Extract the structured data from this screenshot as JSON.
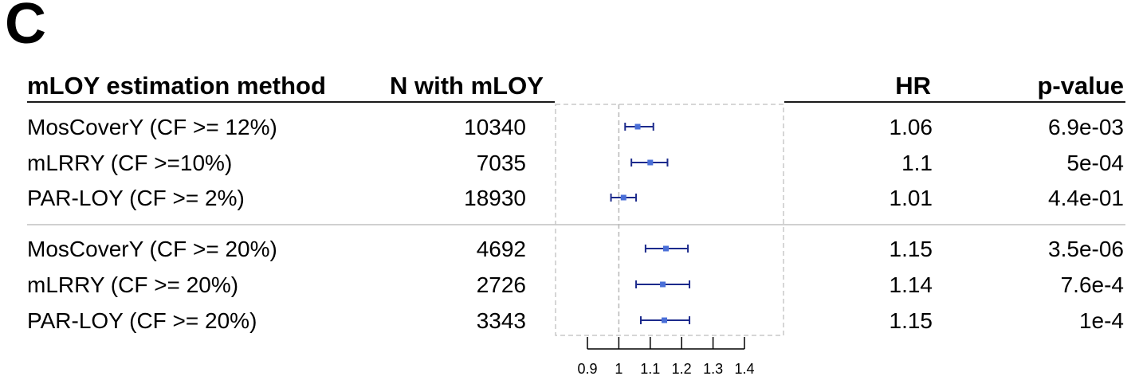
{
  "panel_label": "C",
  "headers": {
    "method": "mLOY estimation method",
    "n": "N with mLOY",
    "hr": "HR",
    "pvalue": "p-value"
  },
  "rows": [
    {
      "method": "MosCoverY (CF >= 12%)",
      "n": "10340",
      "hr": "1.06",
      "pvalue": "6.9e-03"
    },
    {
      "method": "mLRRY (CF >=10%)",
      "n": "7035",
      "hr": "1.1",
      "pvalue": "5e-04"
    },
    {
      "method": "PAR-LOY (CF >= 2%)",
      "n": "18930",
      "hr": "1.01",
      "pvalue": "4.4e-01"
    },
    {
      "method": "MosCoverY (CF >= 20%)",
      "n": "4692",
      "hr": "1.15",
      "pvalue": "3.5e-06"
    },
    {
      "method": "mLRRY (CF >= 20%)",
      "n": "2726",
      "hr": "1.14",
      "pvalue": "7.6e-4"
    },
    {
      "method": "PAR-LOY (CF >= 20%)",
      "n": "3343",
      "hr": "1.15",
      "pvalue": "1e-4"
    }
  ],
  "chart_data": {
    "type": "forest",
    "xlim": [
      0.9,
      1.4
    ],
    "x_ticks": [
      0.9,
      1,
      1.1,
      1.2,
      1.3,
      1.4
    ],
    "x_tick_labels": [
      "0.9",
      "1",
      "1.1",
      "1.2",
      "1.3",
      "1.4"
    ],
    "reference_line": 1,
    "groups": [
      {
        "rows": [
          0,
          1,
          2
        ]
      },
      {
        "rows": [
          3,
          4,
          5
        ]
      }
    ],
    "points": [
      {
        "hr": 1.06,
        "lower": 1.02,
        "upper": 1.11
      },
      {
        "hr": 1.1,
        "lower": 1.04,
        "upper": 1.155
      },
      {
        "hr": 1.015,
        "lower": 0.975,
        "upper": 1.055
      },
      {
        "hr": 1.15,
        "lower": 1.085,
        "upper": 1.22
      },
      {
        "hr": 1.14,
        "lower": 1.055,
        "upper": 1.225
      },
      {
        "hr": 1.145,
        "lower": 1.07,
        "upper": 1.225
      }
    ],
    "colors": {
      "point": "#4a6fd8",
      "ci": "#1c2a8c",
      "guide": "#c8c8c8"
    }
  }
}
